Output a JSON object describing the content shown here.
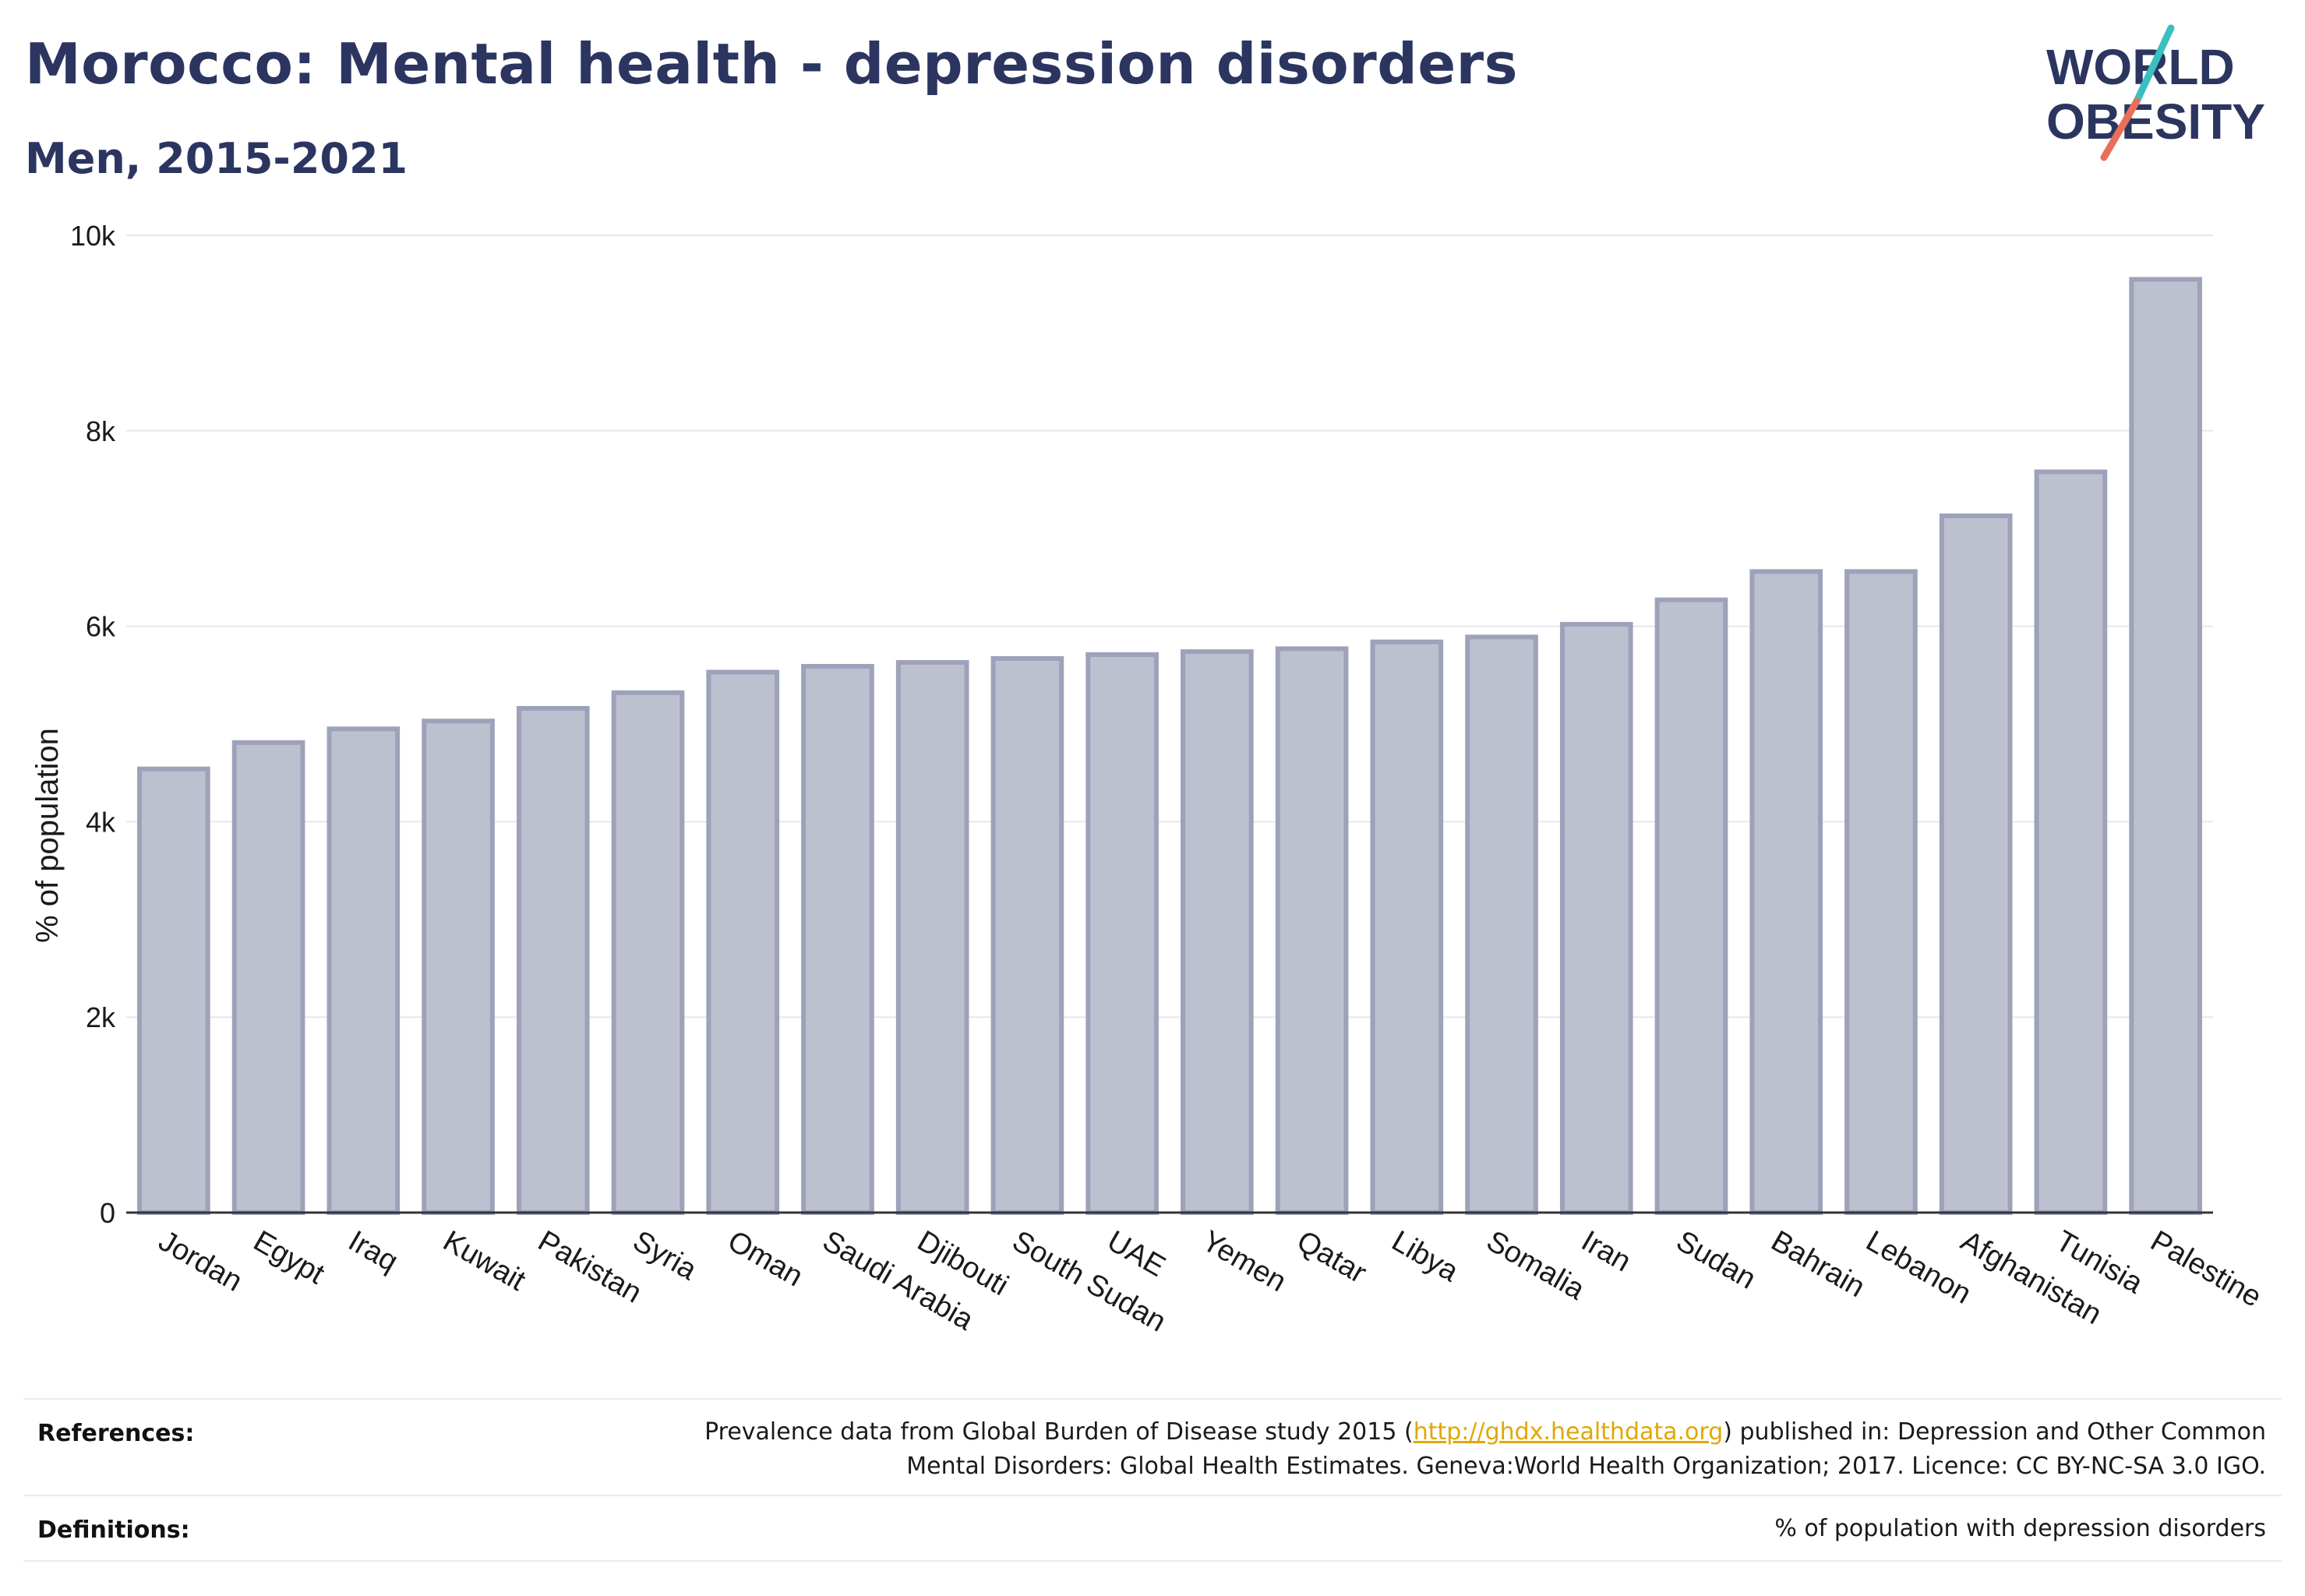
{
  "header": {
    "title": "Morocco: Mental health - depression disorders",
    "subtitle": "Men, 2015-2021"
  },
  "logo": {
    "line1": "WORLD",
    "line2": "OBESITY",
    "text_color": "#2b3560",
    "slash_top_color": "#3bbfc0",
    "slash_bottom_color": "#e8705a"
  },
  "colors": {
    "bar_fill": "#bcc0cf",
    "bar_stroke": "#9da2ba",
    "grid": "#e6e8ee",
    "axis": "#333333"
  },
  "chart_data": {
    "type": "bar",
    "title": "Morocco: Mental health - depression disorders",
    "subtitle": "Men, 2015-2021",
    "ylabel": "% of population",
    "xlabel": "",
    "ylim": [
      0,
      10000
    ],
    "yticks": [
      0,
      2000,
      4000,
      6000,
      8000,
      10000
    ],
    "ytick_labels": [
      "0",
      "2k",
      "4k",
      "6k",
      "8k",
      "10k"
    ],
    "grid": true,
    "categories": [
      "Jordan",
      "Egypt",
      "Iraq",
      "Kuwait",
      "Pakistan",
      "Syria",
      "Oman",
      "Saudi Arabia",
      "Djibouti",
      "South Sudan",
      "UAE",
      "Yemen",
      "Qatar",
      "Libya",
      "Somalia",
      "Iran",
      "Sudan",
      "Bahrain",
      "Lebanon",
      "Afghanistan",
      "Tunisia",
      "Palestine"
    ],
    "values": [
      4540,
      4810,
      4950,
      5030,
      5160,
      5320,
      5530,
      5590,
      5630,
      5670,
      5710,
      5740,
      5770,
      5840,
      5890,
      6020,
      6270,
      6560,
      6560,
      7130,
      7580,
      9550
    ]
  },
  "footer": {
    "references_label": "References:",
    "references_text_before": "Prevalence data from Global Burden of Disease study 2015 (",
    "references_link": "http://ghdx.healthdata.org",
    "references_text_after": ") published in: Depression and Other Common",
    "references_line2": "Mental Disorders: Global Health Estimates. Geneva:World Health Organization; 2017. Licence: CC BY-NC-SA 3.0 IGO.",
    "definitions_label": "Definitions:",
    "definitions_text": "% of population with depression disorders"
  }
}
